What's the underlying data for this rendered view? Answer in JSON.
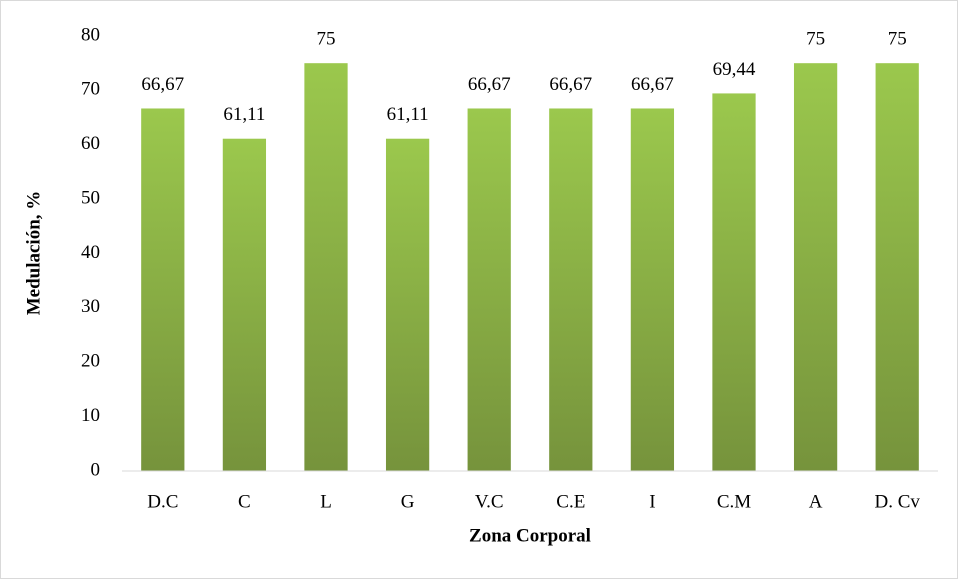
{
  "chart_data": {
    "type": "bar",
    "xlabel": "Zona Corporal",
    "ylabel": "Medulación, %",
    "categories": [
      "D.C",
      "C",
      "L",
      "G",
      "V.C",
      "C.E",
      "I",
      "C.M",
      "A",
      "D. Cv"
    ],
    "values": [
      66.67,
      61.11,
      75,
      61.11,
      66.67,
      66.67,
      66.67,
      69.44,
      75,
      75
    ],
    "value_labels": [
      "66,67",
      "61,11",
      "75",
      "61,11",
      "66,67",
      "66,67",
      "66,67",
      "69,44",
      "75",
      "75"
    ],
    "color": "#8cb447",
    "ylim": [
      0,
      80
    ],
    "yticks": [
      0,
      10,
      20,
      30,
      40,
      50,
      60,
      70,
      80
    ],
    "grid": false
  }
}
